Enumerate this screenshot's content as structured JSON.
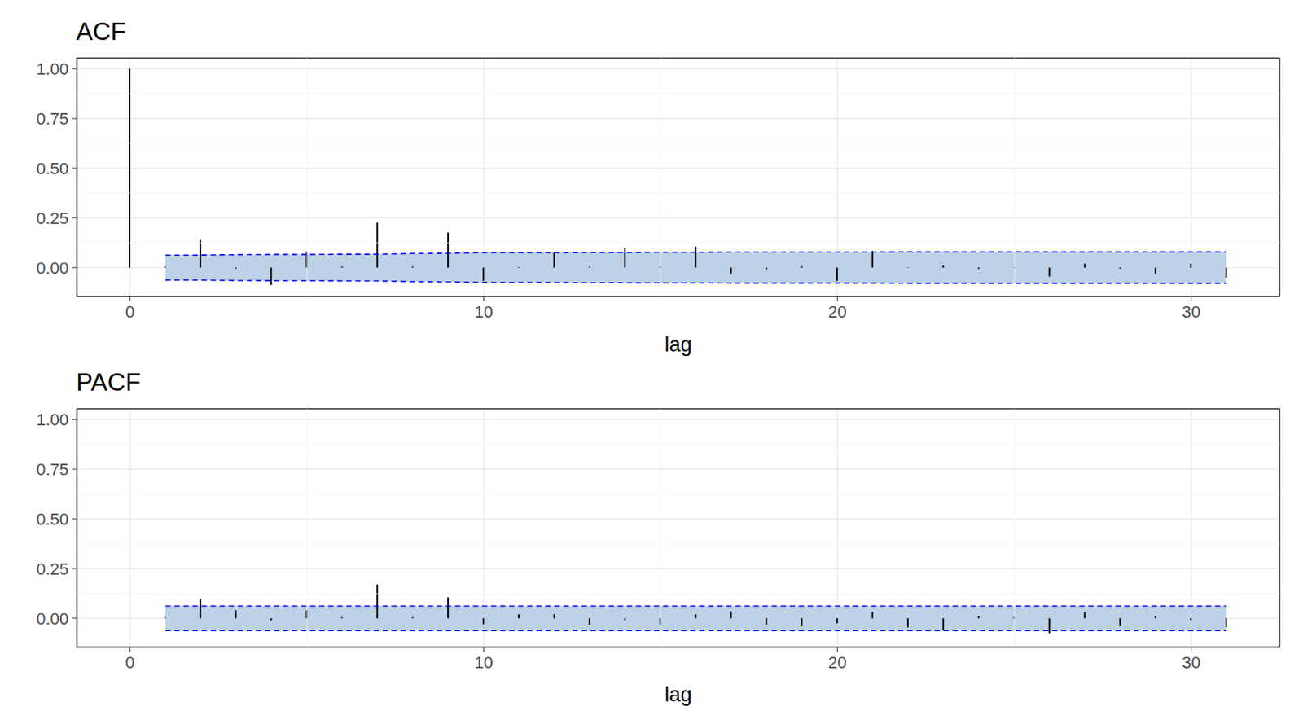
{
  "chart_data": [
    {
      "type": "bar",
      "title": "ACF",
      "x_label": "lag",
      "color": "#000000",
      "grid": true,
      "x": [
        0,
        1,
        2,
        3,
        4,
        5,
        6,
        7,
        8,
        9,
        10,
        11,
        12,
        13,
        14,
        15,
        16,
        17,
        18,
        19,
        20,
        21,
        22,
        23,
        24,
        25,
        26,
        27,
        28,
        29,
        30,
        31
      ],
      "values": [
        1.0,
        0.005,
        0.138,
        -0.005,
        -0.088,
        0.08,
        0.005,
        0.226,
        0.005,
        0.176,
        -0.067,
        0.003,
        0.075,
        0.004,
        0.1,
        0.004,
        0.105,
        -0.03,
        -0.008,
        0.006,
        -0.067,
        0.084,
        0.002,
        0.01,
        -0.006,
        0.002,
        -0.045,
        0.02,
        -0.005,
        -0.03,
        0.02,
        -0.05
      ],
      "ci_upper": [
        null,
        0.063,
        0.063,
        0.065,
        0.066,
        0.066,
        0.067,
        0.067,
        0.071,
        0.072,
        0.075,
        0.075,
        0.075,
        0.076,
        0.076,
        0.077,
        0.077,
        0.078,
        0.078,
        0.078,
        0.078,
        0.078,
        0.079,
        0.079,
        0.079,
        0.079,
        0.079,
        0.079,
        0.079,
        0.079,
        0.079,
        0.079
      ],
      "ci_lower": [
        null,
        -0.063,
        -0.063,
        -0.065,
        -0.066,
        -0.066,
        -0.067,
        -0.067,
        -0.071,
        -0.072,
        -0.075,
        -0.075,
        -0.075,
        -0.076,
        -0.076,
        -0.077,
        -0.077,
        -0.078,
        -0.078,
        -0.078,
        -0.078,
        -0.078,
        -0.079,
        -0.079,
        -0.079,
        -0.079,
        -0.079,
        -0.079,
        -0.079,
        -0.079,
        -0.079,
        -0.079
      ],
      "xlim": [
        -1.5,
        32.5
      ],
      "ylim": [
        -0.145,
        1.054
      ],
      "xticks": [
        0,
        10,
        20,
        30
      ],
      "yticks": [
        {
          "value": 0,
          "label": "0.00"
        },
        {
          "value": 0.25,
          "label": "0.25"
        },
        {
          "value": 0.5,
          "label": "0.50"
        },
        {
          "value": 0.75,
          "label": "0.75"
        },
        {
          "value": 1,
          "label": "1.00"
        }
      ]
    },
    {
      "type": "bar",
      "title": "PACF",
      "x_label": "lag",
      "color": "#000000",
      "grid": true,
      "x": [
        1,
        2,
        3,
        4,
        5,
        6,
        7,
        8,
        9,
        10,
        11,
        12,
        13,
        14,
        15,
        16,
        17,
        18,
        19,
        20,
        21,
        22,
        23,
        24,
        25,
        26,
        27,
        28,
        29,
        30,
        31
      ],
      "values": [
        0.005,
        0.096,
        0.04,
        -0.01,
        0.04,
        0.005,
        0.17,
        0.005,
        0.105,
        -0.03,
        0.02,
        0.02,
        -0.035,
        -0.01,
        -0.035,
        0.02,
        0.035,
        -0.035,
        -0.04,
        -0.025,
        0.03,
        -0.045,
        -0.06,
        0.01,
        0.005,
        -0.075,
        0.03,
        -0.04,
        0.01,
        -0.01,
        -0.045
      ],
      "ci_upper": [
        0.062,
        0.062,
        0.062,
        0.062,
        0.062,
        0.062,
        0.062,
        0.062,
        0.062,
        0.062,
        0.062,
        0.062,
        0.062,
        0.062,
        0.062,
        0.062,
        0.062,
        0.062,
        0.062,
        0.062,
        0.062,
        0.062,
        0.062,
        0.062,
        0.062,
        0.062,
        0.062,
        0.062,
        0.062,
        0.062,
        0.062
      ],
      "ci_lower": [
        -0.062,
        -0.062,
        -0.062,
        -0.062,
        -0.062,
        -0.062,
        -0.062,
        -0.062,
        -0.062,
        -0.062,
        -0.062,
        -0.062,
        -0.062,
        -0.062,
        -0.062,
        -0.062,
        -0.062,
        -0.062,
        -0.062,
        -0.062,
        -0.062,
        -0.062,
        -0.062,
        -0.062,
        -0.062,
        -0.062,
        -0.062,
        -0.062,
        -0.062,
        -0.062,
        -0.062
      ],
      "xlim": [
        -1.5,
        32.5
      ],
      "ylim": [
        -0.145,
        1.054
      ],
      "xticks": [
        0,
        10,
        20,
        30
      ],
      "yticks": [
        {
          "value": 0,
          "label": "0.00"
        },
        {
          "value": 0.25,
          "label": "0.25"
        },
        {
          "value": 0.5,
          "label": "0.50"
        },
        {
          "value": 0.75,
          "label": "0.75"
        },
        {
          "value": 1,
          "label": "1.00"
        }
      ]
    }
  ]
}
